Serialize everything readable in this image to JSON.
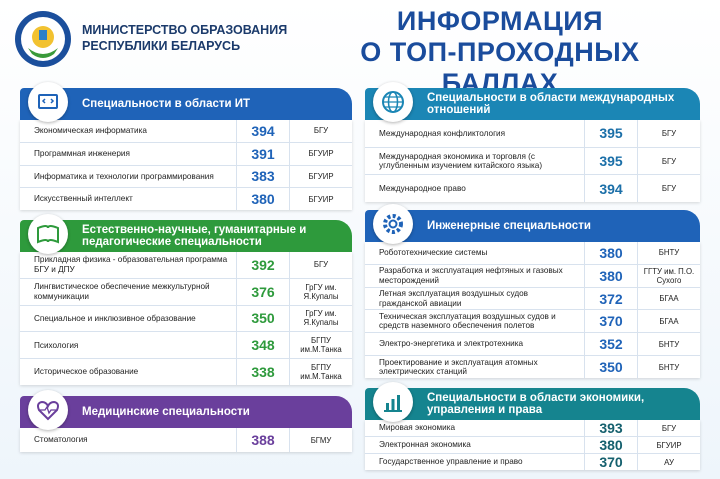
{
  "header": {
    "ministry": [
      "МИНИСТЕРСТВО ОБРАЗОВАНИЯ",
      "РЕСПУБЛИКИ БЕЛАРУСЬ"
    ],
    "title": [
      "ИНФОРМАЦИЯ",
      "О ТОП-ПРОХОДНЫХ БАЛЛАХ"
    ]
  },
  "sections": [
    {
      "title": "Специальности в области ИТ",
      "rows": [
        [
          "Экономическая информатика",
          394,
          "БГУ"
        ],
        [
          "Программная инженерия",
          391,
          "БГУИР"
        ],
        [
          "Информатика и технологии программирования",
          383,
          "БГУИР"
        ],
        [
          "Искусственный интеллект",
          380,
          "БГУИР"
        ]
      ]
    },
    {
      "title": "Естественно-научные, гуманитарные и педагогические специальности",
      "rows": [
        [
          "Прикладная физика - образовательная программа БГУ и ДПУ",
          392,
          "БГУ"
        ],
        [
          "Лингвистическое обеспечение межкультурной коммуникации",
          376,
          "ГрГУ им. Я.Купалы"
        ],
        [
          "Специальное и инклюзивное образование",
          350,
          "ГрГУ им. Я.Купалы"
        ],
        [
          "Психология",
          348,
          "БГПУ им.М.Танка"
        ],
        [
          "Историческое образование",
          338,
          "БГПУ им.М.Танка"
        ]
      ]
    },
    {
      "title": "Медицинские специальности",
      "rows": [
        [
          "Стоматология",
          388,
          "БГМУ"
        ]
      ]
    },
    {
      "title": "Специальности в области международных отношений",
      "rows": [
        [
          "Международная конфликтология",
          395,
          "БГУ"
        ],
        [
          "Международная экономика и торговля (с углубленным изучением китайского языка)",
          395,
          "БГУ"
        ],
        [
          "Международное право",
          394,
          "БГУ"
        ]
      ]
    },
    {
      "title": "Инженерные специальности",
      "rows": [
        [
          "Робототехнические системы",
          380,
          "БНТУ"
        ],
        [
          "Разработка и эксплуатация нефтяных и газовых месторождений",
          380,
          "ГГТУ им. П.О. Сухого"
        ],
        [
          "Летная эксплуатация воздушных судов гражданской авиации",
          372,
          "БГАА"
        ],
        [
          "Техническая эксплуатация воздушных судов и средств наземного обеспечения полетов",
          370,
          "БГАА"
        ],
        [
          "Электро-энергетика и электротехника",
          352,
          "БНТУ"
        ],
        [
          "Проектирование и эксплуатация атомных электрических станций",
          350,
          "БНТУ"
        ]
      ]
    },
    {
      "title": "Специальности в области экономики, управления и права",
      "rows": [
        [
          "Мировая экономика",
          393,
          "БГУ"
        ],
        [
          "Электронная экономика",
          380,
          "БГУИР"
        ],
        [
          "Государственное управление и право",
          370,
          "АУ"
        ]
      ]
    }
  ]
}
